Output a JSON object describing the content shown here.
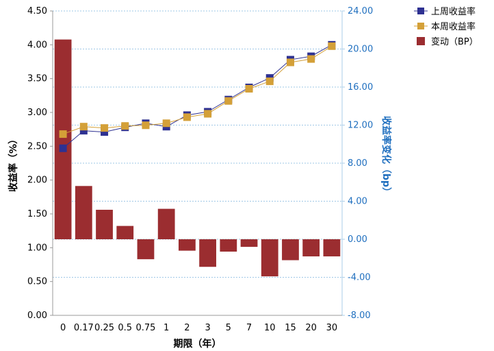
{
  "chart_data": {
    "type": "bar+line",
    "categories": [
      "0",
      "0.17",
      "0.25",
      "0.5",
      "0.75",
      "1",
      "2",
      "3",
      "5",
      "7",
      "10",
      "15",
      "20",
      "30"
    ],
    "series": [
      {
        "name": "上周收益率",
        "type": "line",
        "axis": "left",
        "color": "#2e3192",
        "values": [
          2.47,
          2.73,
          2.71,
          2.78,
          2.84,
          2.79,
          2.96,
          3.01,
          3.19,
          3.37,
          3.51,
          3.78,
          3.83,
          4.0
        ]
      },
      {
        "name": "本周收益率",
        "type": "line",
        "axis": "left",
        "color": "#d4a038",
        "values": [
          2.68,
          2.79,
          2.77,
          2.8,
          2.81,
          2.84,
          2.93,
          2.98,
          3.17,
          3.35,
          3.46,
          3.74,
          3.79,
          3.98
        ]
      },
      {
        "name": "变动（BP）",
        "type": "bar",
        "axis": "right",
        "color": "#9b2d30",
        "values": [
          21.0,
          5.6,
          3.1,
          1.4,
          -2.1,
          3.2,
          -1.2,
          -2.9,
          -1.3,
          -0.8,
          -3.9,
          -2.2,
          -1.8,
          -1.8
        ]
      }
    ],
    "xlabel": "期限（年）",
    "ylabel": "收益率（%）",
    "y2label": "收益率变化（bp）",
    "ylim": [
      0,
      4.5
    ],
    "y2lim": [
      -8,
      24
    ],
    "yticks": [
      "0.00",
      "0.50",
      "1.00",
      "1.50",
      "2.00",
      "2.50",
      "3.00",
      "3.50",
      "4.00",
      "4.50"
    ],
    "y2ticks": [
      "-8.00",
      "-4.00",
      "0.00",
      "4.00",
      "8.00",
      "12.00",
      "16.00",
      "20.00",
      "24.00"
    ],
    "grid": "dotted horizontal",
    "legend": "top-right"
  }
}
